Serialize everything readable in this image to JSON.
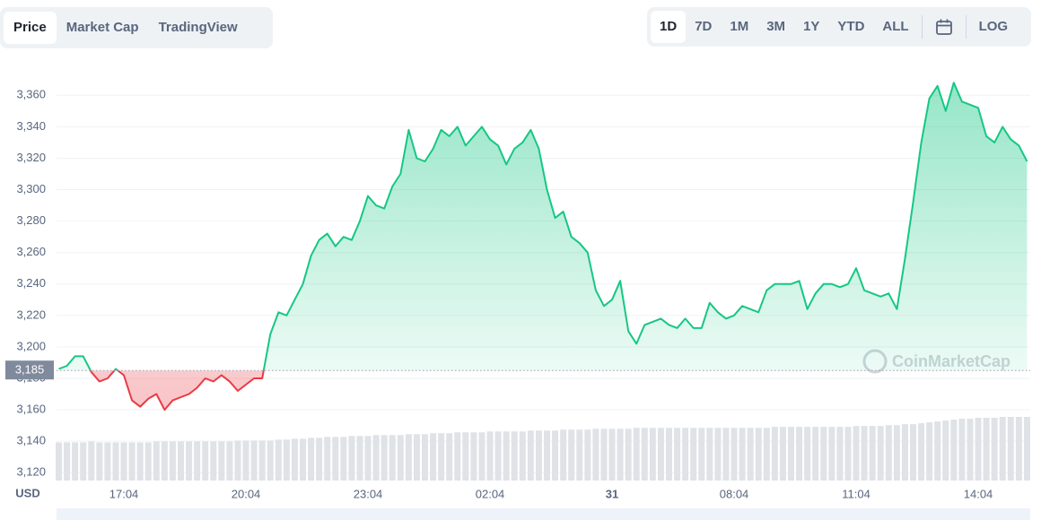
{
  "tabs": [
    "Price",
    "Market Cap",
    "TradingView"
  ],
  "active_tab": 0,
  "ranges": [
    "1D",
    "7D",
    "1M",
    "3M",
    "1Y",
    "YTD",
    "ALL"
  ],
  "active_range": 0,
  "log_label": "LOG",
  "chart_data": {
    "type": "line",
    "ylabel": "USD",
    "watermark": "CoinMarketCap",
    "x": [
      "15:28",
      "15:40",
      "15:52",
      "16:04",
      "16:16",
      "16:28",
      "16:40",
      "16:52",
      "17:04",
      "17:16",
      "17:28",
      "17:40",
      "17:52",
      "18:04",
      "18:16",
      "18:28",
      "18:40",
      "18:52",
      "19:04",
      "19:16",
      "19:28",
      "19:40",
      "19:52",
      "20:04",
      "20:16",
      "20:28",
      "20:40",
      "20:52",
      "21:04",
      "21:16",
      "21:28",
      "21:40",
      "21:52",
      "22:04",
      "22:16",
      "22:28",
      "22:40",
      "22:52",
      "23:04",
      "23:16",
      "23:28",
      "23:40",
      "23:52",
      "00:04",
      "00:16",
      "00:28",
      "00:40",
      "00:52",
      "01:04",
      "01:16",
      "01:28",
      "01:40",
      "01:52",
      "02:04",
      "02:16",
      "02:28",
      "02:40",
      "02:52",
      "03:04",
      "03:16",
      "03:28",
      "03:40",
      "03:52",
      "04:04",
      "04:16",
      "04:28",
      "04:40",
      "04:52",
      "05:04",
      "05:16",
      "05:28",
      "05:40",
      "05:52",
      "06:04",
      "06:16",
      "06:28",
      "06:40",
      "06:52",
      "07:04",
      "07:16",
      "07:28",
      "07:40",
      "07:52",
      "08:04",
      "08:16",
      "08:28",
      "08:40",
      "08:52",
      "09:04",
      "09:16",
      "09:28",
      "09:40",
      "09:52",
      "10:04",
      "10:16",
      "10:28",
      "10:40",
      "10:52",
      "11:04",
      "11:16",
      "11:28",
      "11:40",
      "11:52",
      "12:04",
      "12:16",
      "12:28",
      "12:40",
      "12:52",
      "13:04",
      "13:16",
      "13:28",
      "13:40",
      "13:52",
      "14:04",
      "14:16",
      "14:28",
      "14:40",
      "14:52",
      "15:04",
      "15:16"
    ],
    "series": [
      {
        "color": "#16c784",
        "down_color": "#ea3943",
        "values": [
          3186,
          3188,
          3194,
          3194,
          3184,
          3178,
          3180,
          3186,
          3182,
          3166,
          3162,
          3167,
          3170,
          3160,
          3166,
          3168,
          3170,
          3174,
          3180,
          3178,
          3182,
          3178,
          3172,
          3176,
          3180,
          3180,
          3208,
          3222,
          3220,
          3230,
          3240,
          3258,
          3268,
          3272,
          3264,
          3270,
          3268,
          3280,
          3296,
          3290,
          3288,
          3302,
          3310,
          3338,
          3320,
          3318,
          3326,
          3338,
          3334,
          3340,
          3328,
          3334,
          3340,
          3332,
          3328,
          3316,
          3326,
          3330,
          3338,
          3326,
          3300,
          3282,
          3286,
          3270,
          3266,
          3260,
          3236,
          3226,
          3230,
          3242,
          3210,
          3202,
          3214,
          3216,
          3218,
          3214,
          3212,
          3218,
          3212,
          3212,
          3228,
          3222,
          3218,
          3220,
          3226,
          3224,
          3222,
          3236,
          3240,
          3240,
          3240,
          3242,
          3224,
          3234,
          3240,
          3240,
          3238,
          3240,
          3250,
          3236,
          3234,
          3232,
          3234,
          3224,
          3256,
          3292,
          3330,
          3358,
          3366,
          3350,
          3368,
          3356,
          3354,
          3352,
          3334,
          3330,
          3340,
          3332,
          3328,
          3318
        ]
      }
    ],
    "volume_color": "#dfe2e7",
    "volume": [
      42,
      42,
      42,
      42,
      43,
      42,
      42,
      42,
      42,
      42,
      42,
      42,
      43,
      43,
      43,
      43,
      43,
      43,
      43,
      43,
      43,
      43,
      44,
      44,
      44,
      44,
      44,
      45,
      45,
      46,
      46,
      47,
      47,
      48,
      48,
      48,
      49,
      49,
      49,
      50,
      50,
      50,
      50,
      51,
      51,
      51,
      52,
      52,
      52,
      53,
      53,
      53,
      53,
      54,
      54,
      54,
      54,
      54,
      55,
      55,
      55,
      55,
      56,
      56,
      56,
      56,
      57,
      57,
      57,
      57,
      57,
      58,
      58,
      58,
      58,
      58,
      58,
      58,
      58,
      58,
      58,
      58,
      58,
      58,
      58,
      58,
      58,
      58,
      59,
      59,
      59,
      59,
      59,
      59,
      59,
      59,
      59,
      59,
      60,
      60,
      60,
      60,
      61,
      61,
      62,
      62,
      63,
      64,
      65,
      66,
      67,
      68,
      68,
      69,
      69,
      69,
      70,
      70,
      70,
      70
    ],
    "baseline": {
      "value": 3185,
      "label": "3,185"
    },
    "ylim": [
      3115,
      3375
    ],
    "yticks": [
      {
        "value": 3120,
        "label": "3,120"
      },
      {
        "value": 3140,
        "label": "3,140"
      },
      {
        "value": 3160,
        "label": "3,160"
      },
      {
        "value": 3180,
        "label": "3,180"
      },
      {
        "value": 3200,
        "label": "3,200"
      },
      {
        "value": 3220,
        "label": "3,220"
      },
      {
        "value": 3240,
        "label": "3,240"
      },
      {
        "value": 3260,
        "label": "3,260"
      },
      {
        "value": 3280,
        "label": "3,280"
      },
      {
        "value": 3300,
        "label": "3,300"
      },
      {
        "value": 3320,
        "label": "3,320"
      },
      {
        "value": 3340,
        "label": "3,340"
      },
      {
        "value": 3360,
        "label": "3,360"
      }
    ],
    "xticks": [
      "17:04",
      "20:04",
      "23:04",
      "02:04",
      {
        "value": "05:04",
        "label": "31"
      },
      "08:04",
      "11:04",
      "14:04"
    ],
    "grid": true
  }
}
